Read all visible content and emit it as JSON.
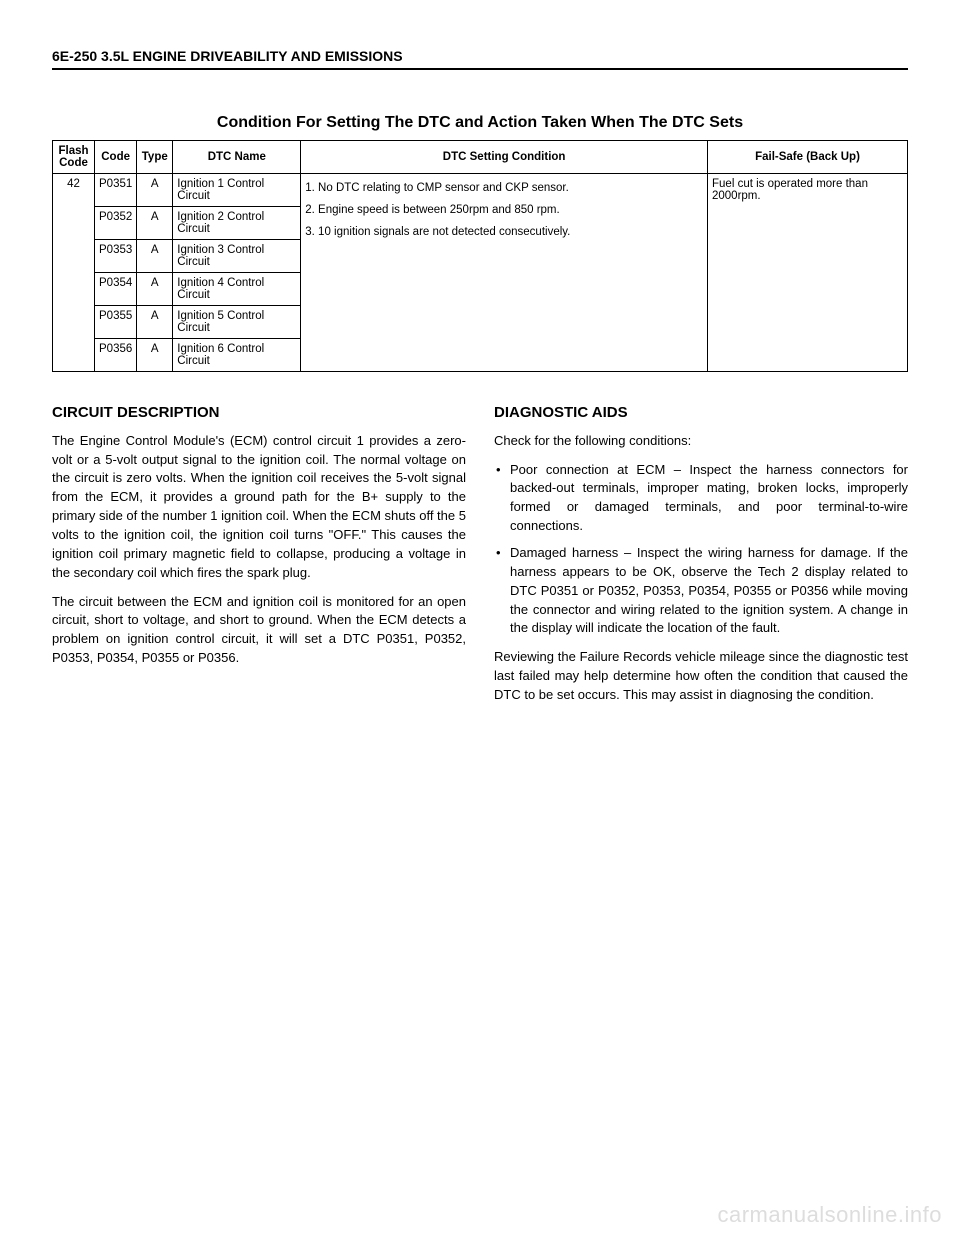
{
  "page": {
    "header": "6E-250 3.5L ENGINE DRIVEABILITY AND EMISSIONS",
    "table_title": "Condition For Setting The DTC and Action Taken When The DTC Sets",
    "watermark": "carmanualsonline.info"
  },
  "table": {
    "headers": {
      "flash": "Flash Code",
      "code": "Code",
      "type": "Type",
      "name": "DTC Name",
      "condition": "DTC Setting Condition",
      "failsafe": "Fail-Safe (Back Up)"
    },
    "flash_code": "42",
    "rows": [
      {
        "code": "P0351",
        "type": "A",
        "name": "Ignition 1 Control Circuit"
      },
      {
        "code": "P0352",
        "type": "A",
        "name": "Ignition 2 Control Circuit"
      },
      {
        "code": "P0353",
        "type": "A",
        "name": "Ignition 3 Control Circuit"
      },
      {
        "code": "P0354",
        "type": "A",
        "name": "Ignition 4 Control Circuit"
      },
      {
        "code": "P0355",
        "type": "A",
        "name": "Ignition 5 Control Circuit"
      },
      {
        "code": "P0356",
        "type": "A",
        "name": "Ignition 6 Control Circuit"
      }
    ],
    "condition": {
      "l1": "1. No DTC relating to CMP sensor and CKP sensor.",
      "l2": "2. Engine speed is between 250rpm and 850 rpm.",
      "l3": "3. 10 ignition signals are not detected consecutively."
    },
    "failsafe": "Fuel cut is operated more than 2000rpm."
  },
  "left": {
    "heading": "CIRCUIT DESCRIPTION",
    "p1": "The Engine Control Module's (ECM) control circuit 1 provides a zero-volt or a 5-volt output signal to the ignition coil. The normal voltage on the circuit is zero volts. When the ignition coil receives the 5-volt signal from the ECM, it provides a ground path for the B+ supply to the primary side of the number 1 ignition coil. When the ECM shuts off the 5 volts to the ignition coil, the ignition coil turns \"OFF.\" This causes the ignition coil primary magnetic field to collapse, producing a voltage in the secondary coil which fires the spark plug.",
    "p2": "The circuit between the ECM and ignition coil is monitored for an open circuit, short to voltage, and short to ground. When the ECM detects a problem on ignition control circuit, it will set a DTC P0351, P0352, P0353, P0354, P0355 or P0356."
  },
  "right": {
    "heading": "DIAGNOSTIC AIDS",
    "intro": "Check for the following conditions:",
    "b1": "Poor connection at ECM – Inspect the harness connectors for backed-out terminals, improper mating, broken locks, improperly formed or damaged terminals, and poor terminal-to-wire connections.",
    "b2": "Damaged harness – Inspect the wiring harness for damage. If the harness appears to be OK, observe the Tech 2 display related to DTC P0351 or P0352, P0353, P0354, P0355 or P0356 while moving the connector and wiring related to the ignition system. A change in the display will indicate the location of the fault.",
    "p3": "Reviewing the Failure Records vehicle mileage since the diagnostic test last failed may help determine how often the condition that caused the DTC to be set occurs. This may assist in diagnosing the condition."
  }
}
